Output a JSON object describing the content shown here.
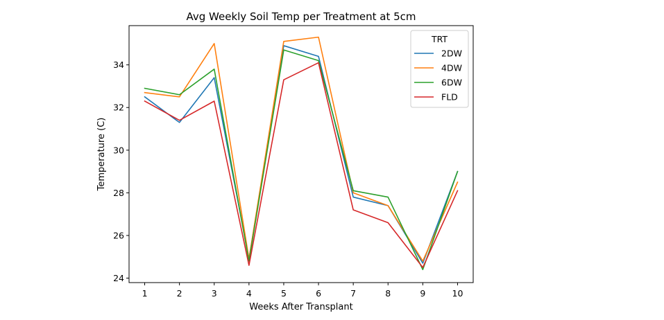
{
  "chart_data": {
    "type": "line",
    "title": "Avg Weekly Soil Temp per Treatment at 5cm",
    "xlabel": "Weeks After Transplant",
    "ylabel": "Temperature (C)",
    "x": [
      1,
      2,
      3,
      4,
      5,
      6,
      7,
      8,
      9,
      10
    ],
    "xticks": [
      "1",
      "2",
      "3",
      "4",
      "5",
      "6",
      "7",
      "8",
      "9",
      "10"
    ],
    "xlim": [
      0.55,
      10.45
    ],
    "yticks": [
      24,
      26,
      28,
      30,
      32,
      34
    ],
    "ylim": [
      23.79,
      35.84
    ],
    "grid": false,
    "legend": {
      "title": "TRT",
      "placement": "top-right"
    },
    "series": [
      {
        "name": "2DW",
        "color": "#1f77b4",
        "values": [
          32.5,
          31.3,
          33.4,
          24.9,
          34.9,
          34.4,
          27.8,
          27.4,
          24.7,
          29.0
        ]
      },
      {
        "name": "4DW",
        "color": "#ff7f0e",
        "values": [
          32.7,
          32.5,
          35.0,
          24.9,
          35.1,
          35.3,
          28.0,
          27.4,
          24.8,
          28.5
        ]
      },
      {
        "name": "6DW",
        "color": "#2ca02c",
        "values": [
          32.9,
          32.6,
          33.8,
          24.8,
          34.7,
          34.2,
          28.1,
          27.8,
          24.4,
          29.0
        ]
      },
      {
        "name": "FLD",
        "color": "#d62728",
        "values": [
          32.3,
          31.4,
          32.3,
          24.6,
          33.3,
          34.1,
          27.2,
          26.6,
          24.5,
          28.1
        ]
      }
    ]
  }
}
